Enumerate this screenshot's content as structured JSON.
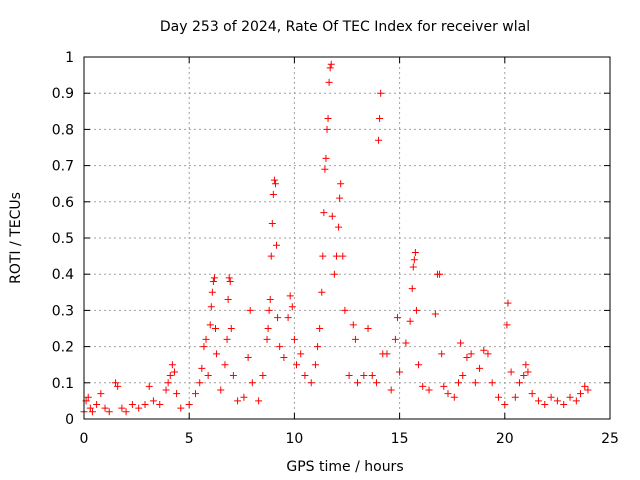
{
  "chart_data": {
    "type": "scatter",
    "title": "Day 253 of 2024, Rate Of TEC Index for receiver wlal",
    "xlabel": "GPS time / hours",
    "ylabel": "ROTI / TECUs",
    "xlim": [
      0,
      25
    ],
    "ylim": [
      0,
      1
    ],
    "x_ticks": [
      0,
      5,
      10,
      15,
      20,
      25
    ],
    "x_tick_labels": [
      "0",
      "5",
      "10",
      "15",
      "20",
      "25"
    ],
    "y_ticks": [
      0,
      0.1,
      0.2,
      0.3,
      0.4,
      0.5,
      0.6,
      0.7,
      0.8,
      0.9,
      1
    ],
    "y_tick_labels": [
      "0",
      "0.1",
      "0.2",
      "0.3",
      "0.4",
      "0.5",
      "0.6",
      "0.7",
      "0.8",
      "0.9",
      "1"
    ],
    "grid": true,
    "marker": "+",
    "color": "#ff0000",
    "series": [
      {
        "name": "ROTI",
        "points": [
          [
            0.0,
            0.02
          ],
          [
            0.1,
            0.05
          ],
          [
            0.2,
            0.06
          ],
          [
            0.3,
            0.03
          ],
          [
            0.4,
            0.02
          ],
          [
            0.6,
            0.04
          ],
          [
            0.8,
            0.07
          ],
          [
            1.0,
            0.03
          ],
          [
            1.2,
            0.02
          ],
          [
            1.5,
            0.1
          ],
          [
            1.6,
            0.09
          ],
          [
            1.8,
            0.03
          ],
          [
            2.0,
            0.02
          ],
          [
            2.3,
            0.04
          ],
          [
            2.6,
            0.03
          ],
          [
            2.9,
            0.04
          ],
          [
            3.1,
            0.09
          ],
          [
            3.3,
            0.05
          ],
          [
            3.6,
            0.04
          ],
          [
            3.9,
            0.08
          ],
          [
            4.0,
            0.1
          ],
          [
            4.1,
            0.12
          ],
          [
            4.2,
            0.15
          ],
          [
            4.3,
            0.13
          ],
          [
            4.4,
            0.07
          ],
          [
            4.6,
            0.03
          ],
          [
            5.0,
            0.04
          ],
          [
            5.3,
            0.07
          ],
          [
            5.5,
            0.1
          ],
          [
            5.6,
            0.14
          ],
          [
            5.7,
            0.2
          ],
          [
            5.8,
            0.22
          ],
          [
            5.9,
            0.12
          ],
          [
            6.0,
            0.26
          ],
          [
            6.05,
            0.31
          ],
          [
            6.1,
            0.35
          ],
          [
            6.15,
            0.38
          ],
          [
            6.2,
            0.39
          ],
          [
            6.25,
            0.25
          ],
          [
            6.3,
            0.18
          ],
          [
            6.5,
            0.08
          ],
          [
            6.7,
            0.15
          ],
          [
            6.8,
            0.22
          ],
          [
            6.85,
            0.33
          ],
          [
            6.9,
            0.39
          ],
          [
            6.95,
            0.38
          ],
          [
            7.0,
            0.25
          ],
          [
            7.1,
            0.12
          ],
          [
            7.3,
            0.05
          ],
          [
            7.6,
            0.06
          ],
          [
            7.8,
            0.17
          ],
          [
            7.9,
            0.3
          ],
          [
            8.0,
            0.1
          ],
          [
            8.3,
            0.05
          ],
          [
            8.5,
            0.12
          ],
          [
            8.7,
            0.22
          ],
          [
            8.75,
            0.25
          ],
          [
            8.8,
            0.3
          ],
          [
            8.85,
            0.33
          ],
          [
            8.9,
            0.45
          ],
          [
            8.95,
            0.54
          ],
          [
            9.0,
            0.62
          ],
          [
            9.05,
            0.66
          ],
          [
            9.1,
            0.65
          ],
          [
            9.15,
            0.48
          ],
          [
            9.2,
            0.28
          ],
          [
            9.3,
            0.2
          ],
          [
            9.5,
            0.17
          ],
          [
            9.7,
            0.28
          ],
          [
            9.8,
            0.34
          ],
          [
            9.9,
            0.31
          ],
          [
            10.0,
            0.22
          ],
          [
            10.1,
            0.15
          ],
          [
            10.3,
            0.18
          ],
          [
            10.5,
            0.12
          ],
          [
            10.8,
            0.1
          ],
          [
            11.0,
            0.15
          ],
          [
            11.1,
            0.2
          ],
          [
            11.2,
            0.25
          ],
          [
            11.3,
            0.35
          ],
          [
            11.35,
            0.45
          ],
          [
            11.4,
            0.57
          ],
          [
            11.45,
            0.69
          ],
          [
            11.5,
            0.72
          ],
          [
            11.55,
            0.8
          ],
          [
            11.6,
            0.83
          ],
          [
            11.65,
            0.93
          ],
          [
            11.7,
            0.97
          ],
          [
            11.75,
            0.98
          ],
          [
            11.8,
            0.56
          ],
          [
            11.9,
            0.4
          ],
          [
            12.0,
            0.45
          ],
          [
            12.1,
            0.53
          ],
          [
            12.15,
            0.61
          ],
          [
            12.2,
            0.65
          ],
          [
            12.3,
            0.45
          ],
          [
            12.4,
            0.3
          ],
          [
            12.6,
            0.12
          ],
          [
            12.8,
            0.26
          ],
          [
            12.9,
            0.22
          ],
          [
            13.0,
            0.1
          ],
          [
            13.3,
            0.12
          ],
          [
            13.5,
            0.25
          ],
          [
            13.7,
            0.12
          ],
          [
            13.9,
            0.1
          ],
          [
            14.0,
            0.77
          ],
          [
            14.05,
            0.83
          ],
          [
            14.1,
            0.9
          ],
          [
            14.2,
            0.18
          ],
          [
            14.4,
            0.18
          ],
          [
            14.6,
            0.08
          ],
          [
            14.8,
            0.22
          ],
          [
            14.9,
            0.28
          ],
          [
            15.0,
            0.13
          ],
          [
            15.3,
            0.21
          ],
          [
            15.5,
            0.27
          ],
          [
            15.6,
            0.36
          ],
          [
            15.65,
            0.42
          ],
          [
            15.7,
            0.44
          ],
          [
            15.75,
            0.46
          ],
          [
            15.8,
            0.3
          ],
          [
            15.9,
            0.15
          ],
          [
            16.1,
            0.09
          ],
          [
            16.4,
            0.08
          ],
          [
            16.7,
            0.29
          ],
          [
            16.8,
            0.4
          ],
          [
            16.9,
            0.4
          ],
          [
            17.0,
            0.18
          ],
          [
            17.1,
            0.09
          ],
          [
            17.3,
            0.07
          ],
          [
            17.6,
            0.06
          ],
          [
            17.8,
            0.1
          ],
          [
            17.9,
            0.21
          ],
          [
            18.0,
            0.12
          ],
          [
            18.2,
            0.17
          ],
          [
            18.4,
            0.18
          ],
          [
            18.6,
            0.1
          ],
          [
            18.8,
            0.14
          ],
          [
            19.0,
            0.19
          ],
          [
            19.2,
            0.18
          ],
          [
            19.4,
            0.1
          ],
          [
            19.7,
            0.06
          ],
          [
            20.0,
            0.04
          ],
          [
            20.1,
            0.26
          ],
          [
            20.15,
            0.32
          ],
          [
            20.3,
            0.13
          ],
          [
            20.5,
            0.06
          ],
          [
            20.7,
            0.1
          ],
          [
            20.9,
            0.12
          ],
          [
            21.0,
            0.15
          ],
          [
            21.1,
            0.13
          ],
          [
            21.3,
            0.07
          ],
          [
            21.6,
            0.05
          ],
          [
            21.9,
            0.04
          ],
          [
            22.2,
            0.06
          ],
          [
            22.5,
            0.05
          ],
          [
            22.8,
            0.04
          ],
          [
            23.1,
            0.06
          ],
          [
            23.4,
            0.05
          ],
          [
            23.6,
            0.07
          ],
          [
            23.8,
            0.09
          ],
          [
            23.95,
            0.08
          ]
        ]
      }
    ]
  }
}
